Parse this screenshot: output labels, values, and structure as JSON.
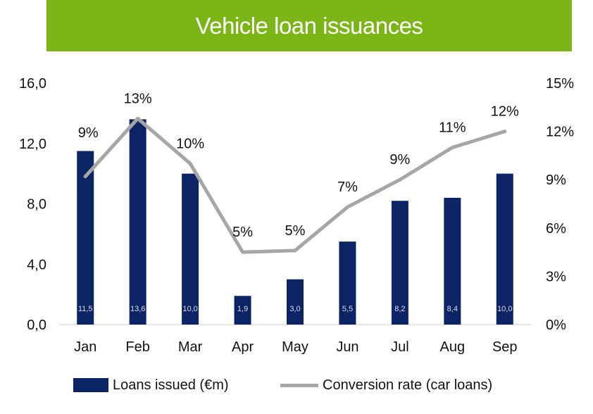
{
  "colors": {
    "banner": "#7cb518",
    "bar": "#0c2466",
    "line": "#a6a6a6",
    "title_text": "#ffffff"
  },
  "chart_data": {
    "type": "bar+line",
    "title": "Vehicle loan issuances",
    "categories": [
      "Jan",
      "Feb",
      "Mar",
      "Apr",
      "May",
      "Jun",
      "Jul",
      "Aug",
      "Sep"
    ],
    "series": [
      {
        "name": "Loans issued (€m)",
        "type": "bar",
        "axis": "left",
        "values": [
          11.5,
          13.6,
          10.0,
          1.9,
          3.0,
          5.5,
          8.2,
          8.4,
          10.0
        ],
        "data_labels": [
          "11,5",
          "13,6",
          "10,0",
          "1,9",
          "3,0",
          "5,5",
          "8,2",
          "8,4",
          "10,0"
        ]
      },
      {
        "name": "Conversion rate (car loans)",
        "type": "line",
        "axis": "right",
        "values": [
          9.2,
          12.8,
          10.0,
          4.5,
          4.6,
          7.3,
          9.0,
          11.0,
          12.0
        ],
        "data_labels": [
          "9%",
          "13%",
          "10%",
          "5%",
          "5%",
          "7%",
          "9%",
          "11%",
          "12%"
        ]
      }
    ],
    "y_left": {
      "ylim": [
        0,
        16
      ],
      "ticks": [
        "0,0",
        "4,0",
        "8,0",
        "12,0",
        "16,0"
      ]
    },
    "y_right": {
      "ylim": [
        0,
        15
      ],
      "ticks": [
        "0%",
        "3%",
        "6%",
        "9%",
        "12%",
        "15%"
      ]
    },
    "grid": false,
    "legend": "bottom"
  }
}
